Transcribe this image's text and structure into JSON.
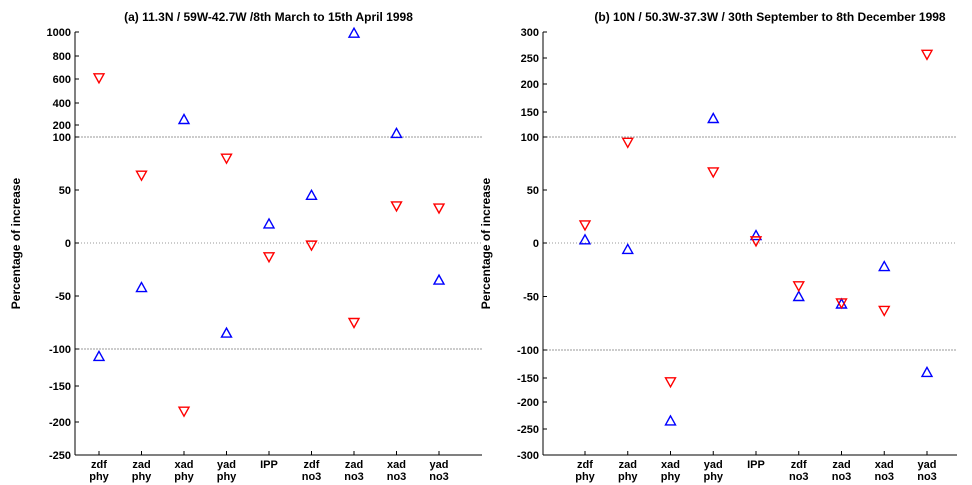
{
  "chart_data": [
    {
      "type": "scatter",
      "title": "(a) 11.3N / 59W-42.7W /8th March to 15th April 1998",
      "ylabel": "Percentage of increase",
      "xlabel": "",
      "categories": [
        {
          "top": "zdf",
          "bottom": "phy"
        },
        {
          "top": "zad",
          "bottom": "phy"
        },
        {
          "top": "xad",
          "bottom": "phy"
        },
        {
          "top": "yad",
          "bottom": "phy"
        },
        {
          "top": "IPP",
          "bottom": ""
        },
        {
          "top": "zdf",
          "bottom": "no3"
        },
        {
          "top": "zad",
          "bottom": "no3"
        },
        {
          "top": "xad",
          "bottom": "no3"
        },
        {
          "top": "yad",
          "bottom": "no3"
        }
      ],
      "yticks": [
        -250,
        -200,
        -150,
        -100,
        -50,
        0,
        50,
        100,
        200,
        400,
        600,
        800,
        1000
      ],
      "ylim": [
        -250,
        1000
      ],
      "scale": "compressed beyond ±100",
      "reference_lines": [
        100,
        0,
        -100
      ],
      "series": [
        {
          "marker": "triangle-up",
          "color": "#0000ff",
          "values": [
            -110,
            -42,
            250,
            -85,
            18,
            45,
            990,
            130,
            -35
          ]
        },
        {
          "marker": "triangle-down",
          "color": "#ff0000",
          "values": [
            610,
            64,
            -185,
            80,
            -13,
            -2,
            -75,
            35,
            33
          ]
        }
      ]
    },
    {
      "type": "scatter",
      "title": "(b) 10N / 50.3W-37.3W / 30th September to 8th December 1998",
      "ylabel": "Percentage of increase",
      "xlabel": "",
      "categories": [
        {
          "top": "zdf",
          "bottom": "phy"
        },
        {
          "top": "zad",
          "bottom": "phy"
        },
        {
          "top": "xad",
          "bottom": "phy"
        },
        {
          "top": "yad",
          "bottom": "phy"
        },
        {
          "top": "IPP",
          "bottom": ""
        },
        {
          "top": "zdf",
          "bottom": "no3"
        },
        {
          "top": "zad",
          "bottom": "no3"
        },
        {
          "top": "xad",
          "bottom": "no3"
        },
        {
          "top": "yad",
          "bottom": "no3"
        }
      ],
      "yticks": [
        -300,
        -250,
        -200,
        -150,
        -100,
        -50,
        0,
        50,
        100,
        150,
        200,
        250,
        300
      ],
      "ylim": [
        -300,
        300
      ],
      "scale": "compressed beyond ±100",
      "reference_lines": [
        100,
        0,
        -100
      ],
      "series": [
        {
          "marker": "triangle-up",
          "color": "#0000ff",
          "values": [
            3,
            -6,
            -235,
            137,
            7,
            -50,
            -57,
            -22,
            -140
          ]
        },
        {
          "marker": "triangle-down",
          "color": "#ff0000",
          "values": [
            17,
            95,
            -158,
            67,
            2,
            -40,
            -56,
            -63,
            257
          ]
        }
      ]
    }
  ]
}
